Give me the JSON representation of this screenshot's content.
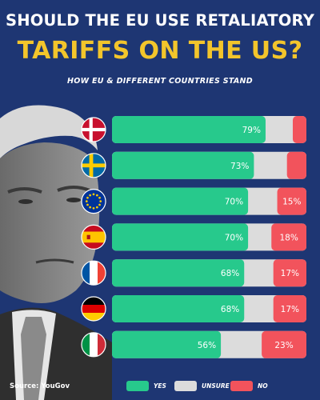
{
  "header": {
    "title_line1": "SHOULD THE EU USE RETALIATORY",
    "title_line2": "TARIFFS ON THE US?",
    "subtitle": "HOW EU & DIFFERENT COUNTRIES STAND"
  },
  "source": "Source: YouGov",
  "colors": {
    "background": "#1e3673",
    "title_accent": "#f3c52b",
    "yes": "#27c98c",
    "unsure": "#dcdcdc",
    "no": "#f2535c"
  },
  "chart_data": {
    "type": "bar",
    "orientation": "horizontal",
    "stacked": true,
    "categories": [
      "Denmark",
      "Sweden",
      "EU",
      "Spain",
      "France",
      "Germany",
      "Italy"
    ],
    "series": [
      {
        "name": "YES",
        "values": [
          79,
          73,
          70,
          70,
          68,
          68,
          56
        ],
        "labels": [
          "79%",
          "73%",
          "70%",
          "70%",
          "68%",
          "68%",
          "56%"
        ]
      },
      {
        "name": "UNSURE",
        "values": [
          14,
          17,
          15,
          12,
          15,
          15,
          21
        ],
        "labels": [
          "",
          "",
          "",
          "",
          "",
          "",
          ""
        ]
      },
      {
        "name": "NO",
        "values": [
          7,
          10,
          15,
          18,
          17,
          17,
          23
        ],
        "labels": [
          "",
          "",
          "15%",
          "18%",
          "17%",
          "17%",
          "23%"
        ]
      }
    ],
    "flags": [
      "denmark-flag",
      "sweden-flag",
      "eu-flag",
      "spain-flag",
      "france-flag",
      "germany-flag",
      "italy-flag"
    ],
    "xlim": [
      0,
      100
    ],
    "legend": {
      "position": "bottom",
      "entries": [
        "YES",
        "UNSURE",
        "NO"
      ]
    }
  }
}
